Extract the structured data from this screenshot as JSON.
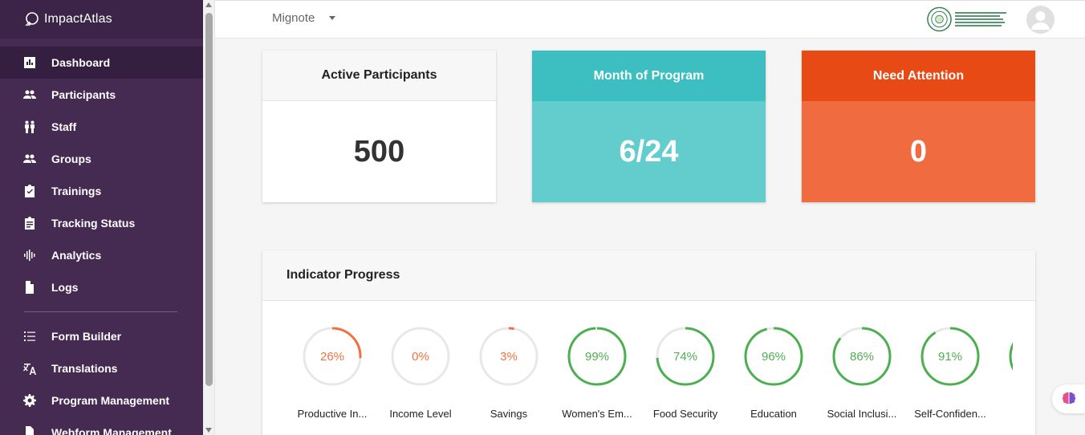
{
  "app": {
    "name": "ImpactAtlas"
  },
  "sidebar": {
    "items": [
      {
        "label": "Dashboard",
        "icon": "bar-chart-icon",
        "active": true
      },
      {
        "label": "Participants",
        "icon": "people-icon"
      },
      {
        "label": "Staff",
        "icon": "staff-icon"
      },
      {
        "label": "Groups",
        "icon": "groups-icon"
      },
      {
        "label": "Trainings",
        "icon": "clipboard-check-icon"
      },
      {
        "label": "Tracking Status",
        "icon": "clipboard-list-icon"
      },
      {
        "label": "Analytics",
        "icon": "waveform-icon"
      },
      {
        "label": "Logs",
        "icon": "document-icon"
      }
    ],
    "admin_items": [
      {
        "label": "Form Builder",
        "icon": "list-icon"
      },
      {
        "label": "Translations",
        "icon": "translate-icon"
      },
      {
        "label": "Program Management",
        "icon": "gear-icon"
      },
      {
        "label": "Webform Management",
        "icon": "document-icon"
      }
    ]
  },
  "topbar": {
    "organization": "Mignote",
    "logo_icon": "organization-seal-icon",
    "avatar_icon": "user-avatar-icon"
  },
  "stats": {
    "active_participants": {
      "title": "Active Participants",
      "value": "500"
    },
    "month_of_program": {
      "title": "Month of Program",
      "value": "6/24",
      "color": "#3dbfc1"
    },
    "need_attention": {
      "title": "Need Attention",
      "value": "0",
      "color": "#e84a16"
    }
  },
  "indicator_panel": {
    "title": "Indicator Progress",
    "items": [
      {
        "label": "Productive In...",
        "percent": 26,
        "text": "26%",
        "color": "#f07040"
      },
      {
        "label": "Income Level",
        "percent": 0,
        "text": "0%",
        "color": "#f07040"
      },
      {
        "label": "Savings",
        "percent": 3,
        "text": "3%",
        "color": "#f07040"
      },
      {
        "label": "Women's Em...",
        "percent": 99,
        "text": "99%",
        "color": "#4caf50"
      },
      {
        "label": "Food Security",
        "percent": 74,
        "text": "74%",
        "color": "#4caf50"
      },
      {
        "label": "Education",
        "percent": 96,
        "text": "96%",
        "color": "#4caf50"
      },
      {
        "label": "Social Inclusi...",
        "percent": 86,
        "text": "86%",
        "color": "#4caf50"
      },
      {
        "label": "Self-Confiden...",
        "percent": 91,
        "text": "91%",
        "color": "#4caf50"
      },
      {
        "label": "",
        "percent": 97,
        "text": "",
        "color": "#4caf50"
      }
    ]
  },
  "floating": {
    "icon": "brain-icon"
  }
}
